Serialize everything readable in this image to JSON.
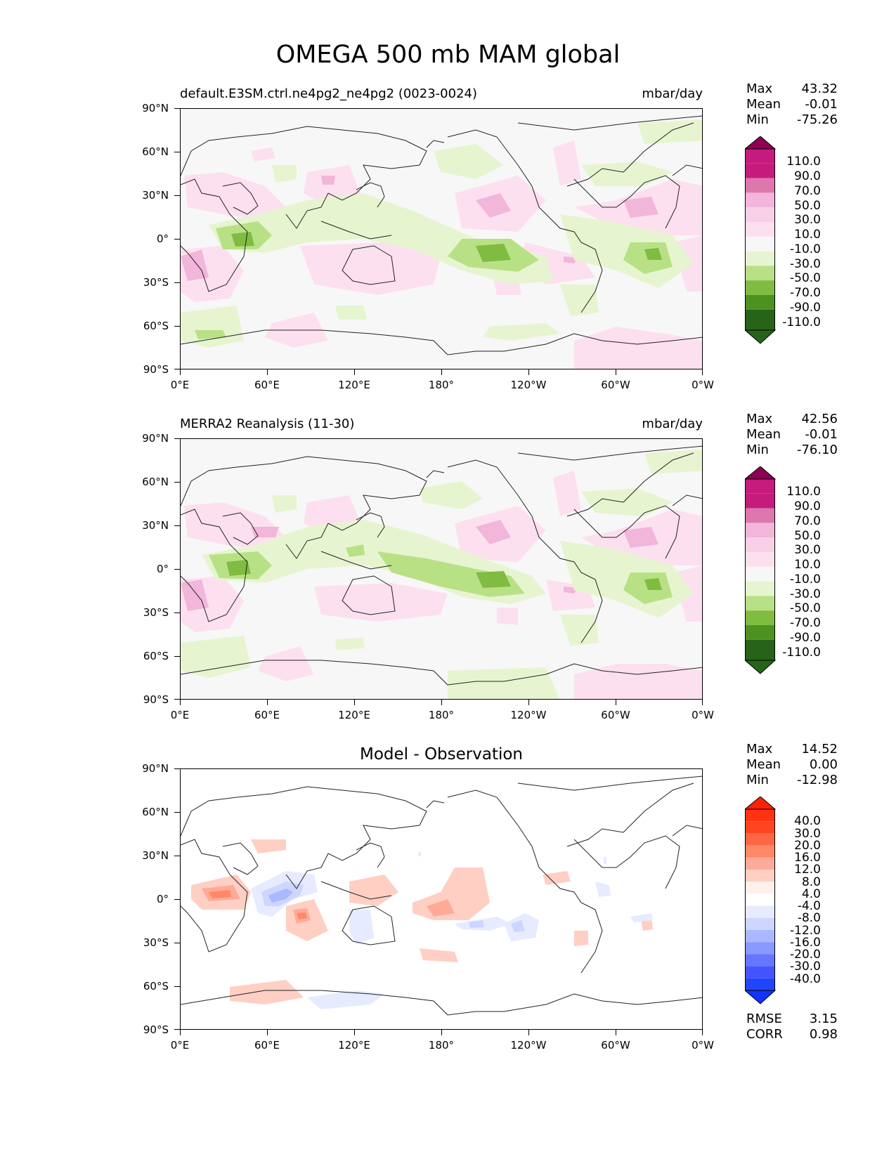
{
  "title": "OMEGA 500 mb MAM global",
  "axes": {
    "lat_labels": [
      "90°N",
      "60°N",
      "30°N",
      "0°",
      "30°S",
      "60°S",
      "90°S"
    ],
    "lon_labels": [
      "0°E",
      "60°E",
      "120°E",
      "180°",
      "120°W",
      "60°W",
      "0°W"
    ]
  },
  "panels": [
    {
      "title_left": "default.E3SM.ctrl.ne4pg2_ne4pg2 (0023-0024)",
      "title_right": "mbar/day",
      "stats": [
        {
          "label": "Max",
          "value": "43.32"
        },
        {
          "label": "Mean",
          "value": "-0.01"
        },
        {
          "label": "Min",
          "value": "-75.26"
        }
      ],
      "colorbar_labels": [
        "110.0",
        "90.0",
        "70.0",
        "50.0",
        "30.0",
        "10.0",
        "-10.0",
        "-30.0",
        "-50.0",
        "-70.0",
        "-90.0",
        "-110.0"
      ]
    },
    {
      "title_left": "MERRA2 Reanalysis (11-30)",
      "title_right": "mbar/day",
      "stats": [
        {
          "label": "Max",
          "value": "42.56"
        },
        {
          "label": "Mean",
          "value": "-0.01"
        },
        {
          "label": "Min",
          "value": "-76.10"
        }
      ],
      "colorbar_labels": [
        "110.0",
        "90.0",
        "70.0",
        "50.0",
        "30.0",
        "10.0",
        "-10.0",
        "-30.0",
        "-50.0",
        "-70.0",
        "-90.0",
        "-110.0"
      ]
    },
    {
      "title_center": "Model - Observation",
      "stats": [
        {
          "label": "Max",
          "value": "14.52"
        },
        {
          "label": "Mean",
          "value": "0.00"
        },
        {
          "label": "Min",
          "value": "-12.98"
        }
      ],
      "colorbar_labels": [
        "40.0",
        "30.0",
        "20.0",
        "16.0",
        "12.0",
        "8.0",
        "4.0",
        "-4.0",
        "-8.0",
        "-12.0",
        "-16.0",
        "-20.0",
        "-30.0",
        "-40.0"
      ],
      "rmse": {
        "label": "RMSE",
        "value": "3.15"
      },
      "corr": {
        "label": "CORR",
        "value": "0.98"
      }
    }
  ],
  "colors": {
    "pg_scale": [
      "#8e0152",
      "#c51b7d",
      "#de77ae",
      "#f1b6da",
      "#f7cfe6",
      "#fde0ef",
      "#f7f7f7",
      "#e6f5d0",
      "#b8e186",
      "#7fbc41",
      "#4d9221",
      "#276419"
    ],
    "diff_scale": [
      "#ff2200",
      "#ff4422",
      "#ff6644",
      "#ff8866",
      "#ffaa99",
      "#ffcfc4",
      "#fff0ec",
      "#ffffff",
      "#e6ebff",
      "#ccd6ff",
      "#aab8ff",
      "#8899ff",
      "#6677ff",
      "#4455ff",
      "#1133ff"
    ]
  }
}
